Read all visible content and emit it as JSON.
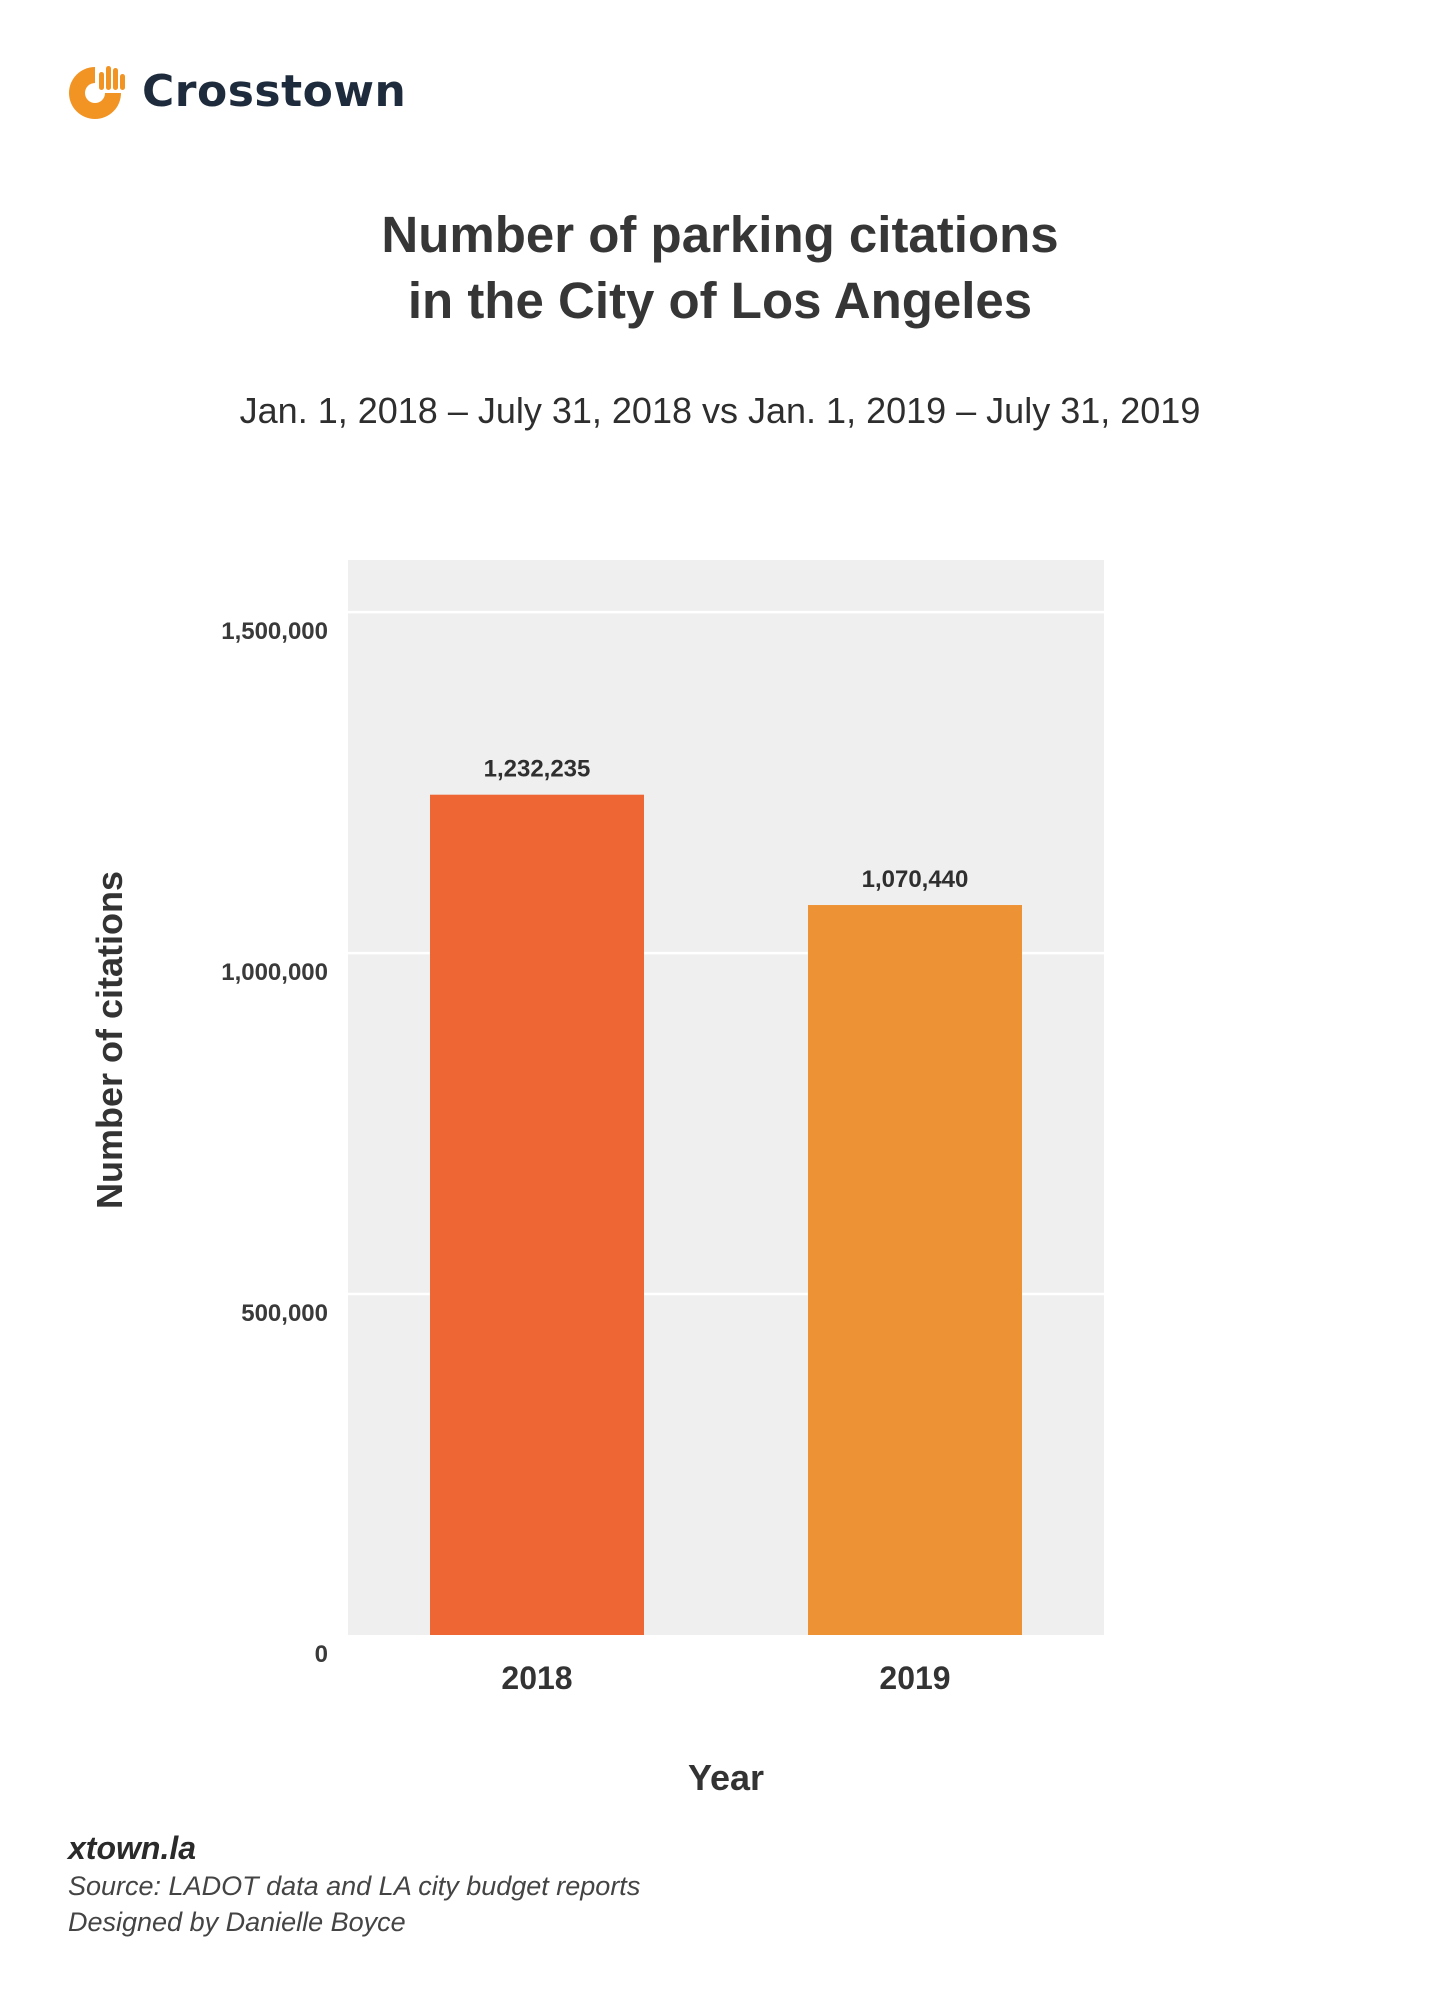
{
  "brand": {
    "name": "Crosstown",
    "logo_icon": "crosstown-hand-logo-icon",
    "logo_color": "#f29423"
  },
  "title_lines": [
    "Number of parking citations",
    "in the City of Los Angeles"
  ],
  "subtitle": "Jan. 1, 2018 – July 31, 2018 vs Jan. 1, 2019 – July 31, 2019",
  "chart_data": {
    "type": "bar",
    "title": "Number of parking citations in the City of Los Angeles",
    "subtitle": "Jan. 1, 2018 – July 31, 2018 vs Jan. 1, 2019 – July 31, 2019",
    "categories": [
      "2018",
      "2019"
    ],
    "values": [
      1232235,
      1070440
    ],
    "value_labels": [
      "1,232,235",
      "1,070,440"
    ],
    "bar_colors": [
      "#ed6633",
      "#ee9236"
    ],
    "xlabel": "Year",
    "ylabel": "Number of citations",
    "ylim": [
      0,
      1550000
    ],
    "yticks": [
      0,
      500000,
      1000000,
      1500000
    ],
    "ytick_labels": [
      "0",
      "500,000",
      "1,000,000",
      "1,500,000"
    ],
    "grid": true,
    "panel_color": "#efefef"
  },
  "footer": {
    "site": "xtown.la",
    "source": "Source: LADOT data and LA city budget reports",
    "designer": "Designed by Danielle Boyce"
  }
}
